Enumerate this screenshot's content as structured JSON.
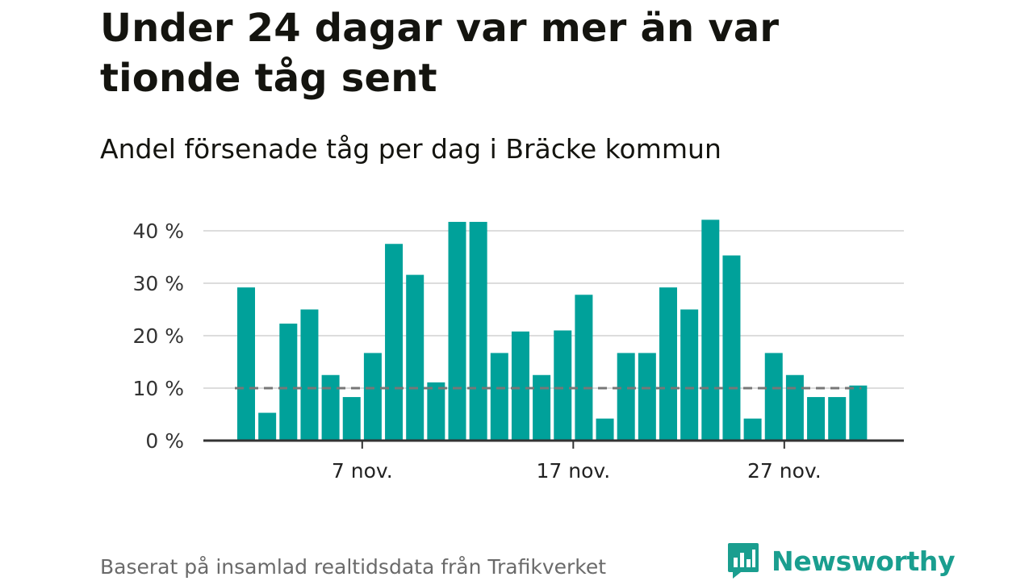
{
  "title": "Under 24 dagar var mer än var tionde tåg sent",
  "subtitle": "Andel försenade tåg per dag i Bräcke kommun",
  "source": "Baserat på insamlad realtidsdata från Trafikverket",
  "brand": {
    "name": "Newsworthy",
    "icon": "newsworthy-logo-icon"
  },
  "colors": {
    "bar": "#00a19a",
    "reference_line": "#777777",
    "grid": "#dddddd",
    "axis": "#333333",
    "brand": "#1a9e8f"
  },
  "chart_data": {
    "type": "bar",
    "x_start": "1 nov.",
    "categories": [
      "1 nov.",
      "2 nov.",
      "3 nov.",
      "4 nov.",
      "5 nov.",
      "6 nov.",
      "7 nov.",
      "8 nov.",
      "9 nov.",
      "10 nov.",
      "11 nov.",
      "12 nov.",
      "13 nov.",
      "14 nov.",
      "15 nov.",
      "16 nov.",
      "17 nov.",
      "18 nov.",
      "19 nov.",
      "20 nov.",
      "21 nov.",
      "22 nov.",
      "23 nov.",
      "24 nov.",
      "25 nov.",
      "26 nov.",
      "27 nov.",
      "28 nov.",
      "29 nov.",
      "30 nov."
    ],
    "values": [
      29.2,
      5.3,
      22.3,
      25,
      12.5,
      8.3,
      16.7,
      37.5,
      31.6,
      11.1,
      41.7,
      41.7,
      16.7,
      20.8,
      12.5,
      21,
      27.8,
      4.2,
      16.7,
      16.7,
      29.2,
      25,
      42.1,
      35.3,
      4.2,
      16.7,
      12.5,
      8.3,
      8.3,
      10.5
    ],
    "reference_value": 10,
    "ylim": [
      0,
      40
    ],
    "yticks": [
      0,
      10,
      20,
      30,
      40
    ],
    "ytick_labels": [
      "0 %",
      "10 %",
      "20 %",
      "30 %",
      "40 %"
    ],
    "xticks": [
      {
        "index": 6,
        "label": "7 nov."
      },
      {
        "index": 16,
        "label": "17 nov."
      },
      {
        "index": 26,
        "label": "27 nov."
      }
    ],
    "grid": true,
    "legend": "none",
    "xlabel": "",
    "ylabel": ""
  }
}
